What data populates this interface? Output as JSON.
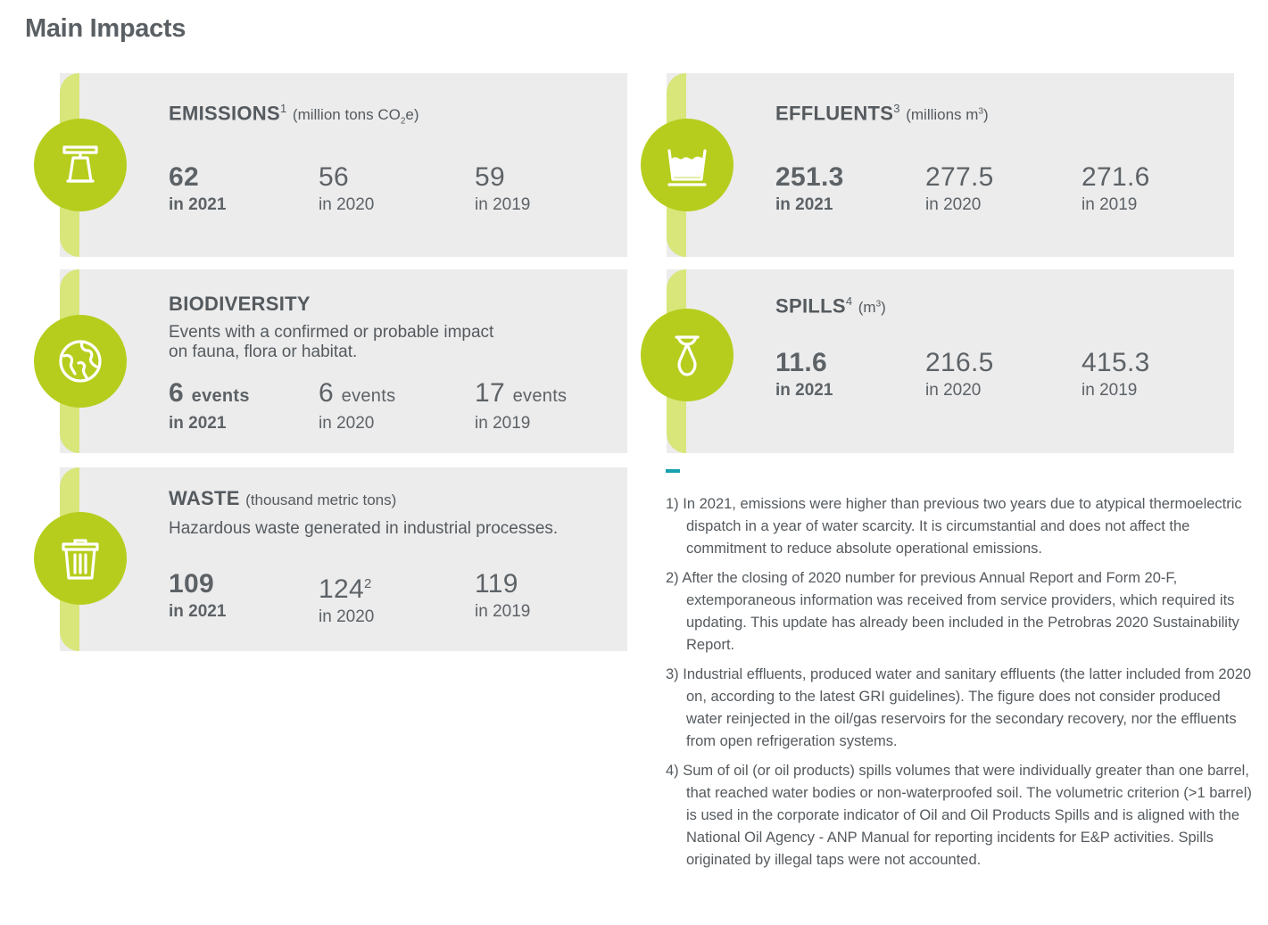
{
  "page_title": "Main Impacts",
  "cards": {
    "emissions": {
      "title": "EMISSIONS",
      "sup": "1",
      "unit_pre": "(million tons CO",
      "unit_sub": "2",
      "unit_post": "e)",
      "icon": "factory-icon",
      "stats": [
        {
          "value": "62",
          "year": "in 2021"
        },
        {
          "value": "56",
          "year": "in 2020"
        },
        {
          "value": "59",
          "year": "in 2019"
        }
      ]
    },
    "biodiversity": {
      "title": "BIODIVERSITY",
      "desc_line1": "Events with a confirmed or probable impact",
      "desc_line2": "on fauna, flora or habitat.",
      "icon": "globe-icon",
      "stats": [
        {
          "value": "6",
          "suffix": "events",
          "year": "in 2021"
        },
        {
          "value": "6",
          "suffix": "events",
          "year": "in 2020"
        },
        {
          "value": "17",
          "suffix": "events",
          "year": "in 2019"
        }
      ]
    },
    "waste": {
      "title": "WASTE",
      "unit": "(thousand metric tons)",
      "desc": "Hazardous waste generated in industrial processes.",
      "icon": "trash-icon",
      "stats": [
        {
          "value": "109",
          "year": "in 2021"
        },
        {
          "value": "124",
          "sup": "2",
          "year": "in 2020"
        },
        {
          "value": "119",
          "year": "in 2019"
        }
      ]
    },
    "effluents": {
      "title": "EFFLUENTS",
      "sup": "3",
      "unit_pre": "(millions m",
      "unit_sup": "3",
      "unit_post": ")",
      "icon": "washbasin-icon",
      "stats": [
        {
          "value": "251.3",
          "year": "in 2021"
        },
        {
          "value": "277.5",
          "year": "in 2020"
        },
        {
          "value": "271.6",
          "year": "in 2019"
        }
      ]
    },
    "spills": {
      "title": "SPILLS",
      "sup": "4",
      "unit_pre": "(m",
      "unit_sup": "3",
      "unit_post": ")",
      "icon": "drop-icon",
      "stats": [
        {
          "value": "11.6",
          "year": "in 2021"
        },
        {
          "value": "216.5",
          "year": "in 2020"
        },
        {
          "value": "415.3",
          "year": "in 2019"
        }
      ]
    }
  },
  "notes": [
    "1)  In 2021, emissions were higher than previous two years due to atypical thermoelectric dispatch in a year of water scarcity. It is circumstantial and does not affect the commitment to reduce absolute operational emissions.",
    "2) After the closing of 2020 number for previous Annual Report and Form 20-F, extemporaneous information was received from service providers, which required its updating. This update has already been included in the Petrobras 2020 Sustainability Report.",
    "3)  Industrial effluents, produced water and sanitary effluents (the latter included from 2020 on, according to the latest GRI guidelines). The figure does not consider produced water reinjected in the oil/gas reservoirs for the secondary recovery, nor the effluents from open refrigeration systems.",
    "4)  Sum of oil (or oil products) spills volumes that were individually greater than one barrel, that reached water bodies or non-waterproofed soil. The volumetric criterion (>1 barrel) is used in the corporate indicator of Oil and Oil Products Spills and is aligned with the National Oil Agency - ANP Manual for reporting incidents for E&P activities. Spills originated by illegal taps were not accounted."
  ],
  "colors": {
    "accent_green": "#b6cd1d",
    "stripe_green": "#d8e67a",
    "card_bg": "#ececed",
    "divider_teal": "#17a0ad"
  }
}
